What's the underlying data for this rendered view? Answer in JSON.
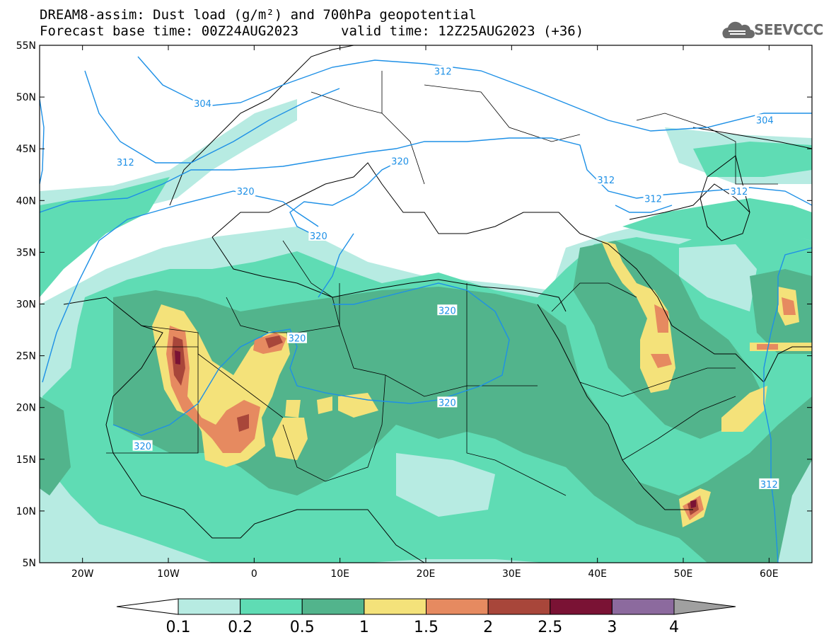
{
  "header": {
    "title_line1": "DREAM8-assim: Dust load (g/m²) and 700hPa geopotential",
    "title_line2a": "Forecast base time: 00Z24AUG2023",
    "title_line2b": "valid time: 12Z25AUG2023 (+36)"
  },
  "logo": {
    "text": "SEEVCCC",
    "icon": "cloud-icon"
  },
  "map": {
    "lon_range": [
      -25,
      65
    ],
    "lat_range": [
      5,
      55
    ],
    "lat_ticks": [
      {
        "value": 55,
        "label": "55N"
      },
      {
        "value": 50,
        "label": "50N"
      },
      {
        "value": 45,
        "label": "45N"
      },
      {
        "value": 40,
        "label": "40N"
      },
      {
        "value": 35,
        "label": "35N"
      },
      {
        "value": 30,
        "label": "30N"
      },
      {
        "value": 25,
        "label": "25N"
      },
      {
        "value": 20,
        "label": "20N"
      },
      {
        "value": 15,
        "label": "15N"
      },
      {
        "value": 10,
        "label": "10N"
      },
      {
        "value": 5,
        "label": "5N"
      }
    ],
    "lon_ticks": [
      {
        "value": -20,
        "label": "20W"
      },
      {
        "value": -10,
        "label": "10W"
      },
      {
        "value": 0,
        "label": "0"
      },
      {
        "value": 10,
        "label": "10E"
      },
      {
        "value": 20,
        "label": "20E"
      },
      {
        "value": 30,
        "label": "30E"
      },
      {
        "value": 40,
        "label": "40E"
      },
      {
        "value": 50,
        "label": "50E"
      },
      {
        "value": 60,
        "label": "60E"
      }
    ],
    "contour_labels": [
      {
        "text": "312",
        "lon": 22,
        "lat": 52.5
      },
      {
        "text": "304",
        "lon": -6,
        "lat": 49.4
      },
      {
        "text": "312",
        "lon": -15,
        "lat": 43.7
      },
      {
        "text": "320",
        "lon": -1,
        "lat": 40.9
      },
      {
        "text": "320",
        "lon": 17,
        "lat": 43.8
      },
      {
        "text": "320",
        "lon": 7.5,
        "lat": 36.6
      },
      {
        "text": "320",
        "lon": 22.5,
        "lat": 29.4
      },
      {
        "text": "320",
        "lon": 5,
        "lat": 26.7
      },
      {
        "text": "320",
        "lon": 22.5,
        "lat": 20.5
      },
      {
        "text": "320",
        "lon": -13,
        "lat": 16.3
      },
      {
        "text": "312",
        "lon": 41,
        "lat": 42
      },
      {
        "text": "312",
        "lon": 46.5,
        "lat": 40.2
      },
      {
        "text": "312",
        "lon": 56.5,
        "lat": 40.9
      },
      {
        "text": "304",
        "lon": 59.5,
        "lat": 47.8
      },
      {
        "text": "312",
        "lon": 60,
        "lat": 12.6
      }
    ]
  },
  "colorbar": {
    "levels": [
      "0.1",
      "0.2",
      "0.5",
      "1",
      "1.5",
      "2",
      "2.5",
      "3",
      "4"
    ],
    "colors": [
      "#ffffff",
      "#b7ebe2",
      "#5fdcb4",
      "#52b48c",
      "#f4e27a",
      "#e68a60",
      "#a8463a",
      "#7a1234",
      "#8c6a9e",
      "#a0a0a0"
    ]
  }
}
